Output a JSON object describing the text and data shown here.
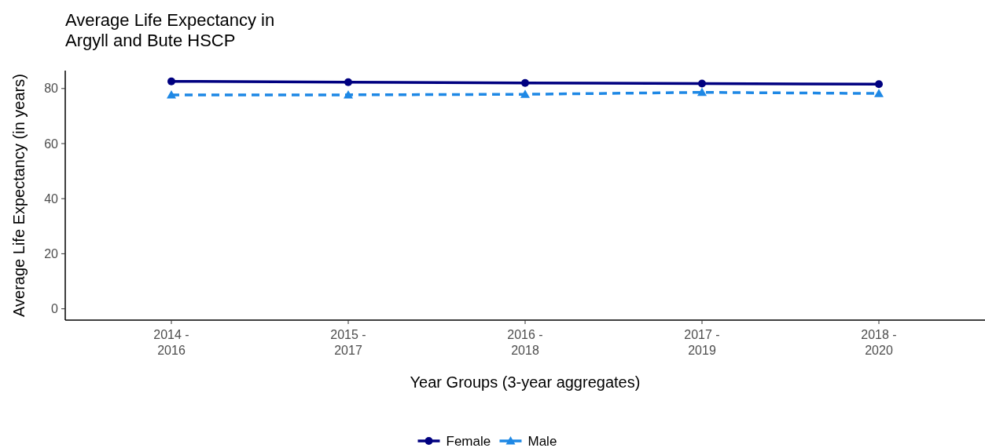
{
  "chart_data": {
    "type": "line",
    "title": "Average Life Expectancy in\nArgyll and Bute HSCP",
    "xlabel": "Year Groups (3-year aggregates)",
    "ylabel": "Average Life Expectancy (in years)",
    "categories": [
      "2014 -\n2016",
      "2015 -\n2017",
      "2016 -\n2018",
      "2017 -\n2019",
      "2018 -\n2020"
    ],
    "series": [
      {
        "name": "Female",
        "color": "#000080",
        "values": [
          82.6,
          82.3,
          82.0,
          81.8,
          81.6
        ],
        "marker": "circle",
        "line_style": "solid"
      },
      {
        "name": "Male",
        "color": "#1e88e5",
        "values": [
          77.7,
          77.7,
          77.9,
          78.6,
          78.2
        ],
        "marker": "triangle",
        "line_style": "dashed"
      }
    ],
    "ylim": [
      -4.1,
      86.5
    ],
    "yticks": [
      0,
      20,
      40,
      60,
      80
    ],
    "grid": false,
    "legend": "bottom"
  }
}
